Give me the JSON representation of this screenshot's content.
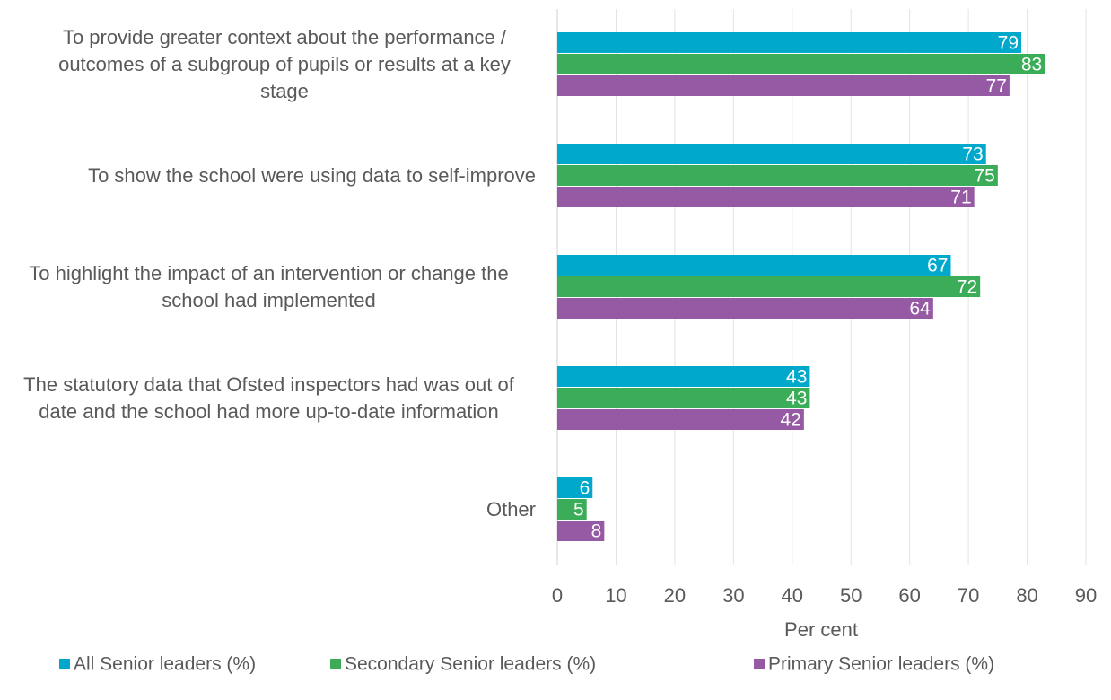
{
  "chart_data": {
    "type": "hbar",
    "categories": [
      "To provide greater context about the performance / outcomes of a subgroup of pupils or results at a key stage",
      "To show the school were using data to self-improve",
      "To highlight the impact of an intervention or change the school had implemented",
      "The statutory data that Ofsted inspectors had was out of date and the school had more up-to-date information",
      "Other"
    ],
    "series": [
      {
        "name": "All Senior leaders (%)",
        "color": "#00a8cc",
        "values": [
          79,
          73,
          67,
          43,
          6
        ]
      },
      {
        "name": "Secondary Senior leaders (%)",
        "color": "#3bad58",
        "values": [
          83,
          75,
          72,
          43,
          5
        ]
      },
      {
        "name": "Primary Senior leaders (%)",
        "color": "#9659a3",
        "values": [
          77,
          71,
          64,
          42,
          8
        ]
      }
    ],
    "xlabel": "Per cent",
    "xlim": [
      0,
      90
    ],
    "xticks": [
      0,
      10,
      20,
      30,
      40,
      50,
      60,
      70,
      80,
      90
    ],
    "grid": true,
    "legend": "bottom"
  }
}
